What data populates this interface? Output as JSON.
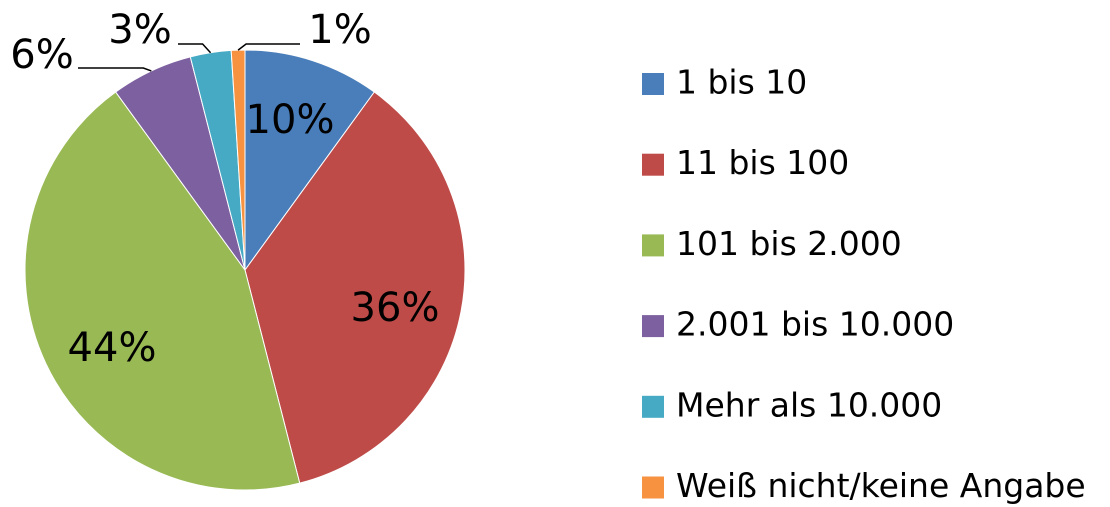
{
  "chart_data": {
    "type": "pie",
    "categories": [
      "1 bis 10",
      "11 bis 100",
      "101 bis 2.000",
      "2.001 bis 10.000",
      "Mehr als 10.000",
      "Weiß nicht/keine Angabe"
    ],
    "values": [
      10,
      36,
      44,
      6,
      3,
      1
    ],
    "value_labels": [
      "10%",
      "36%",
      "44%",
      "6%",
      "3%",
      "1%"
    ],
    "colors": [
      "#4a7ebb",
      "#be4b48",
      "#98b954",
      "#7d60a0",
      "#46aac5",
      "#f69240"
    ],
    "legend": "right"
  }
}
